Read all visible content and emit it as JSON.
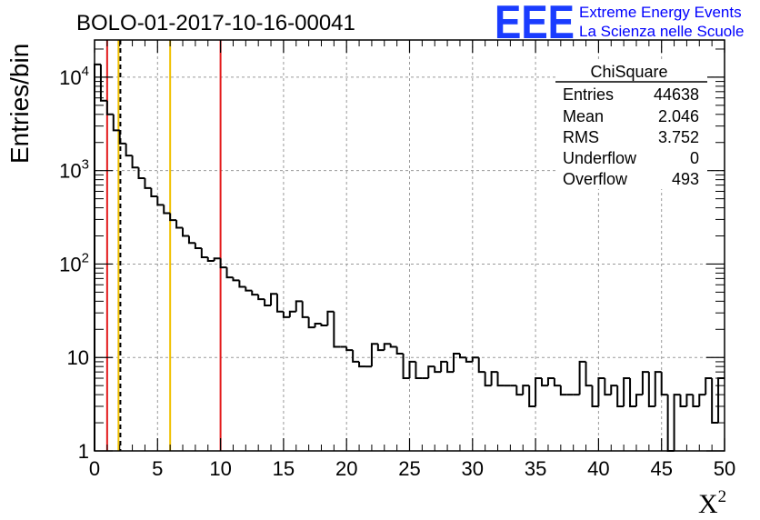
{
  "header": {
    "title": "BOLO-01-2017-10-16-00041",
    "logo": "EEE",
    "brand_line1": "Extreme Energy Events",
    "brand_line2": "La Scienza nelle Scuole"
  },
  "stats": {
    "title": "ChiSquare",
    "rows": [
      {
        "label": "Entries",
        "value": "44638"
      },
      {
        "label": "Mean",
        "value": "2.046"
      },
      {
        "label": "RMS",
        "value": "3.752"
      },
      {
        "label": "Underflow",
        "value": "0"
      },
      {
        "label": "Overflow",
        "value": "493"
      }
    ]
  },
  "chart_data": {
    "type": "histogram",
    "xlabel": "X",
    "xlabel_superscript": "2",
    "ylabel": "Entries/bin",
    "xlim": [
      0,
      50
    ],
    "ylim": [
      1,
      25000
    ],
    "y_scale": "log",
    "grid": true,
    "x_ticks": [
      "0",
      "5",
      "10",
      "15",
      "20",
      "25",
      "30",
      "35",
      "40",
      "45",
      "50"
    ],
    "y_ticks": [
      {
        "value": 1,
        "base": "1",
        "exp": ""
      },
      {
        "value": 10,
        "base": "10",
        "exp": ""
      },
      {
        "value": 100,
        "base": "10",
        "exp": "2"
      },
      {
        "value": 1000,
        "base": "10",
        "exp": "3"
      },
      {
        "value": 10000,
        "base": "10",
        "exp": "4"
      }
    ],
    "bin_width": 0.5,
    "bin_start": 0,
    "values": [
      13700,
      5600,
      4000,
      2700,
      1950,
      1450,
      1080,
      830,
      650,
      530,
      430,
      350,
      295,
      245,
      200,
      168,
      148,
      118,
      108,
      115,
      92,
      72,
      67,
      57,
      52,
      47,
      42,
      36,
      48,
      31,
      27,
      31,
      40,
      27,
      21,
      23,
      22,
      31,
      13,
      13,
      12,
      9,
      8,
      8,
      14,
      12,
      14,
      13,
      11,
      6,
      9,
      6,
      6,
      8,
      7,
      9,
      7,
      11,
      10,
      9,
      10,
      7,
      5,
      7,
      5,
      5,
      5,
      4,
      5,
      3,
      6,
      5,
      6,
      5,
      4,
      4,
      4,
      9,
      5,
      3,
      6,
      4,
      5,
      3,
      6,
      3,
      4,
      7,
      3,
      7,
      4,
      0,
      4,
      3,
      4,
      3,
      4,
      6,
      2,
      6
    ],
    "vertical_lines": [
      {
        "x": 1,
        "color": "#e31a1c",
        "style": "solid"
      },
      {
        "x": 1.9,
        "color": "#f0c000",
        "style": "solid"
      },
      {
        "x": 2.05,
        "color": "#000000",
        "style": "dashed"
      },
      {
        "x": 6,
        "color": "#f0c000",
        "style": "solid"
      },
      {
        "x": 10,
        "color": "#e31a1c",
        "style": "solid"
      }
    ]
  }
}
